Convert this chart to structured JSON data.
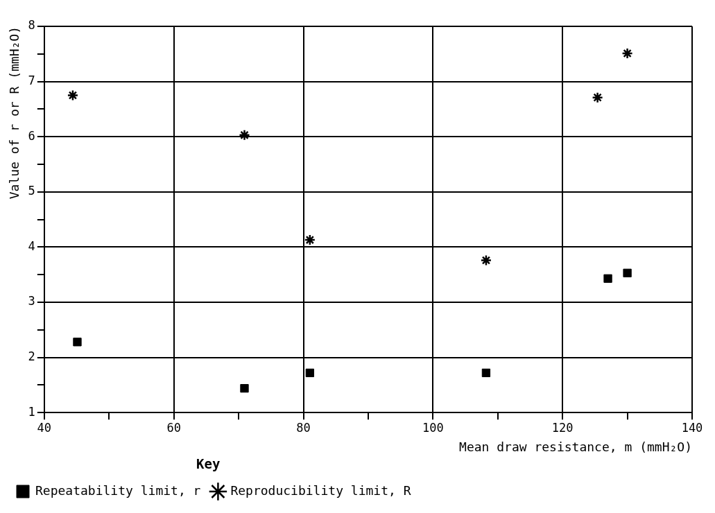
{
  "chart_data": {
    "type": "scatter",
    "xlabel": "Mean draw resistance, m (mmH₂O)",
    "ylabel": "Value of r or R (mmH₂O)",
    "legend_title": "Key",
    "xlim": [
      40,
      140
    ],
    "ylim": [
      1,
      8
    ],
    "xticks": [
      40,
      {
        "value": 50,
        "label": null
      },
      60,
      {
        "value": 70,
        "label": null
      },
      80,
      {
        "value": 90,
        "label": null
      },
      100,
      {
        "value": 110,
        "label": null
      },
      120,
      {
        "value": 130,
        "label": null
      },
      140
    ],
    "yticks": [
      1,
      {
        "value": 1.5,
        "label": null
      },
      2,
      {
        "value": 2.5,
        "label": null
      },
      3,
      {
        "value": 3.5,
        "label": null
      },
      4,
      {
        "value": 4.5,
        "label": null
      },
      5,
      {
        "value": 5.5,
        "label": null
      },
      6,
      {
        "value": 6.5,
        "label": null
      },
      7,
      {
        "value": 7.5,
        "label": null
      },
      8
    ],
    "grid": true,
    "legend": "bottom left",
    "series": [
      {
        "name": "Repeatability limit, r",
        "color": "#000000",
        "marker": "square",
        "x": [
          45.1,
          70.9,
          81.0,
          108.2,
          127.0,
          130.0
        ],
        "values": [
          2.28,
          1.44,
          1.72,
          1.72,
          3.43,
          3.53
        ]
      },
      {
        "name": "Reproducibility limit, R",
        "color": "#000000",
        "marker": "cross",
        "x": [
          44.4,
          70.9,
          81.0,
          108.2,
          125.4,
          130.0
        ],
        "values": [
          6.75,
          6.03,
          4.13,
          3.76,
          6.71,
          7.51
        ]
      }
    ]
  }
}
